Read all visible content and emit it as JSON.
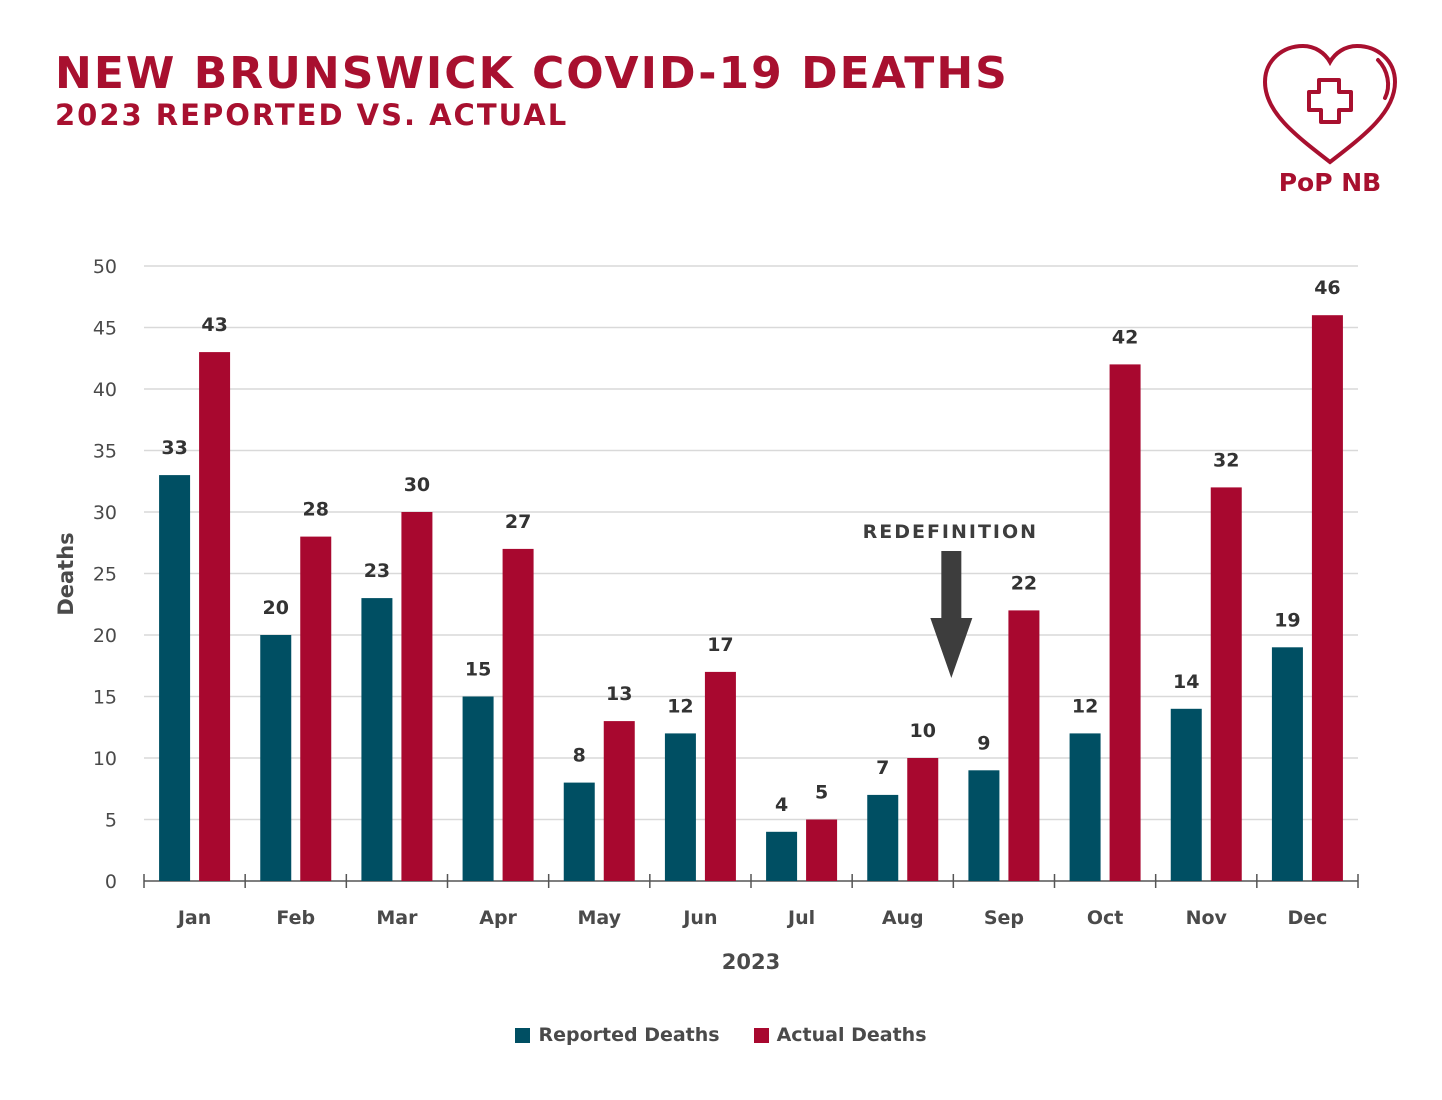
{
  "header": {
    "title": "NEW BRUNSWICK COVID-19 DEATHS",
    "subtitle": "2023 REPORTED VS. ACTUAL"
  },
  "logo": {
    "text": "PoP NB",
    "icon": "heart-cross-icon",
    "color": "#a8102f"
  },
  "chart_data": {
    "type": "bar",
    "categories": [
      "Jan",
      "Feb",
      "Mar",
      "Apr",
      "May",
      "Jun",
      "Jul",
      "Aug",
      "Sep",
      "Oct",
      "Nov",
      "Dec"
    ],
    "series": [
      {
        "name": "Reported Deaths",
        "color": "#004f63",
        "values": [
          33,
          20,
          23,
          15,
          8,
          12,
          4,
          7,
          9,
          12,
          14,
          19
        ]
      },
      {
        "name": "Actual Deaths",
        "color": "#a8082f",
        "values": [
          43,
          28,
          30,
          27,
          13,
          17,
          5,
          10,
          22,
          42,
          32,
          46
        ]
      }
    ],
    "xlabel": "2023",
    "ylabel": "Deaths",
    "ylim": [
      0,
      50
    ],
    "yticks": [
      0,
      5,
      10,
      15,
      20,
      25,
      30,
      35,
      40,
      45,
      50
    ],
    "grid": true,
    "legend_position": "bottom-center",
    "annotation": {
      "text": "REDEFINITION",
      "category": "Aug",
      "type": "down-arrow"
    }
  }
}
